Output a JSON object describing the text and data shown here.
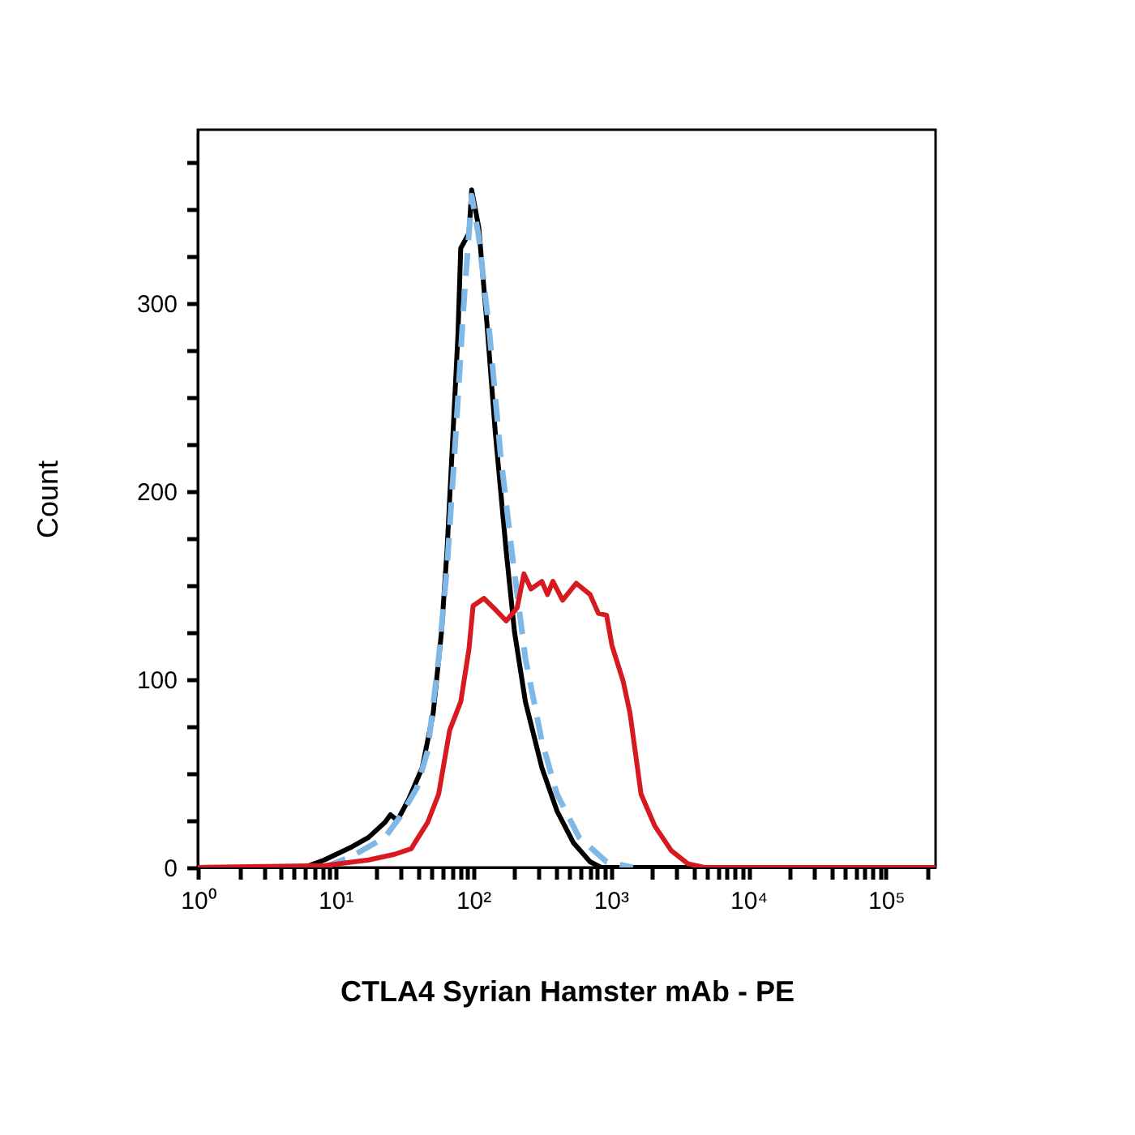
{
  "chart_data": {
    "type": "line",
    "xlabel": "CTLA4 Syrian Hamster mAb - PE",
    "ylabel": "Count",
    "log": "x",
    "grid": false,
    "xlim": [
      1,
      229000
    ],
    "ylim": [
      0,
      392
    ],
    "xticks": [
      {
        "value": 1,
        "label": "10⁰"
      },
      {
        "value": 2,
        "label": null
      },
      {
        "value": 3,
        "label": null
      },
      {
        "value": 4,
        "label": null
      },
      {
        "value": 5,
        "label": null
      },
      {
        "value": 6,
        "label": null
      },
      {
        "value": 7,
        "label": null
      },
      {
        "value": 8,
        "label": null
      },
      {
        "value": 9,
        "label": null
      },
      {
        "value": 10,
        "label": "10¹"
      },
      {
        "value": 20,
        "label": null
      },
      {
        "value": 30,
        "label": null
      },
      {
        "value": 40,
        "label": null
      },
      {
        "value": 50,
        "label": null
      },
      {
        "value": 60,
        "label": null
      },
      {
        "value": 70,
        "label": null
      },
      {
        "value": 80,
        "label": null
      },
      {
        "value": 90,
        "label": null
      },
      {
        "value": 100,
        "label": "10²"
      },
      {
        "value": 200,
        "label": null
      },
      {
        "value": 300,
        "label": null
      },
      {
        "value": 400,
        "label": null
      },
      {
        "value": 500,
        "label": null
      },
      {
        "value": 600,
        "label": null
      },
      {
        "value": 700,
        "label": null
      },
      {
        "value": 800,
        "label": null
      },
      {
        "value": 900,
        "label": null
      },
      {
        "value": 1000,
        "label": "10³"
      },
      {
        "value": 2000,
        "label": null
      },
      {
        "value": 3000,
        "label": null
      },
      {
        "value": 4000,
        "label": null
      },
      {
        "value": 5000,
        "label": null
      },
      {
        "value": 6000,
        "label": null
      },
      {
        "value": 7000,
        "label": null
      },
      {
        "value": 8000,
        "label": null
      },
      {
        "value": 9000,
        "label": null
      },
      {
        "value": 10000,
        "label": "10⁴"
      },
      {
        "value": 20000,
        "label": null
      },
      {
        "value": 30000,
        "label": null
      },
      {
        "value": 40000,
        "label": null
      },
      {
        "value": 50000,
        "label": null
      },
      {
        "value": 60000,
        "label": null
      },
      {
        "value": 70000,
        "label": null
      },
      {
        "value": 80000,
        "label": null
      },
      {
        "value": 90000,
        "label": null
      },
      {
        "value": 100000,
        "label": "10⁵"
      },
      {
        "value": 200000,
        "label": null
      }
    ],
    "yticks": [
      0,
      {
        "value": 25,
        "label": null
      },
      {
        "value": 50,
        "label": null
      },
      {
        "value": 75,
        "label": null
      },
      100,
      {
        "value": 125,
        "label": null
      },
      {
        "value": 150,
        "label": null
      },
      {
        "value": 175,
        "label": null
      },
      200,
      {
        "value": 225,
        "label": null
      },
      {
        "value": 250,
        "label": null
      },
      {
        "value": 275,
        "label": null
      },
      300,
      {
        "value": 325,
        "label": null
      },
      {
        "value": 350,
        "label": null
      },
      {
        "value": 375,
        "label": null
      }
    ],
    "series": [
      {
        "color": "#000000",
        "line_style": "solid",
        "x": [
          1,
          5.9,
          8.3,
          13.2,
          17.4,
          22.9,
          25.1,
          28.2,
          33.9,
          42.7,
          51.3,
          58.9,
          64.6,
          70.8,
          77.6,
          81.3,
          93.3,
          97.7,
          110,
          126,
          145,
          174,
          200,
          240,
          316,
          407,
          537,
          708,
          851,
          4000
        ],
        "values": [
          0,
          0,
          4,
          11,
          16,
          24,
          28,
          25,
          36,
          53,
          82,
          125,
          168,
          225,
          283,
          329,
          337,
          360,
          340,
          289,
          231,
          168,
          125,
          88,
          53,
          30,
          13,
          3,
          0,
          0
        ]
      },
      {
        "color": "#7fb8e6",
        "line_style": "dashed",
        "x": [
          8.3,
          13.2,
          22.9,
          29.5,
          38.9,
          46.8,
          56.2,
          64.6,
          74.1,
          85.1,
          97.7,
          110,
          132,
          158,
          191,
          240,
          316,
          407,
          589,
          933,
          1450
        ],
        "values": [
          0,
          6,
          16,
          27,
          42,
          62,
          111,
          159,
          225,
          297,
          357,
          335,
          283,
          220,
          168,
          111,
          67,
          39,
          16,
          3,
          0
        ]
      },
      {
        "color": "#d71920",
        "line_style": "solid",
        "x": [
          1,
          8.3,
          17.4,
          26.9,
          35.5,
          46.8,
          56.2,
          67.6,
          81.3,
          93.3,
          100,
          120,
          145,
          174,
          209,
          234,
          263,
          316,
          347,
          380,
          447,
          562,
          708,
          813,
          933,
          1020,
          1230,
          1380,
          1660,
          2090,
          2750,
          3630,
          4790,
          229000
        ],
        "values": [
          0,
          1,
          4,
          7,
          10,
          24,
          39,
          73,
          88,
          116,
          139,
          143,
          137,
          131,
          138,
          156,
          148,
          152,
          145,
          152,
          142,
          151,
          145,
          135,
          134,
          118,
          99,
          82,
          39,
          22,
          9,
          2,
          0,
          0
        ]
      }
    ]
  }
}
